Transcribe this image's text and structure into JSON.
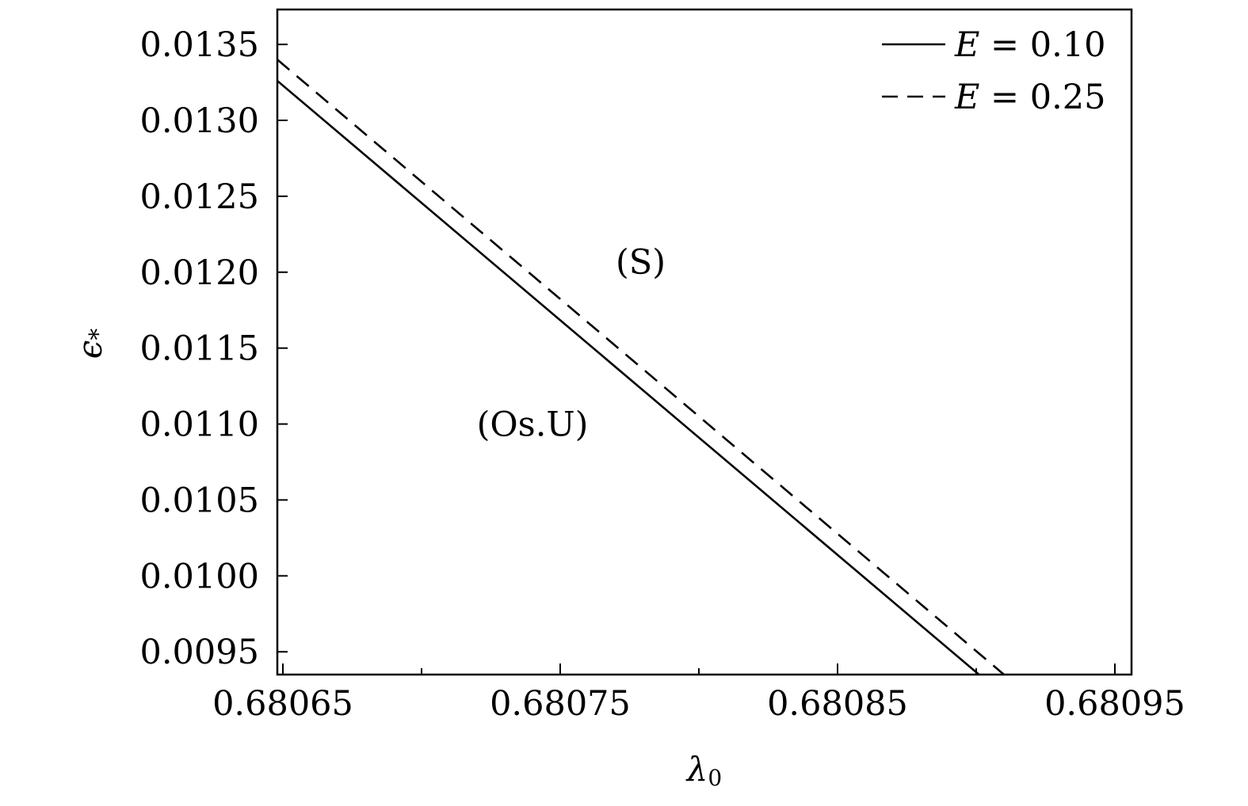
{
  "chart_data": {
    "type": "line",
    "xlabel": "λ",
    "xlabel_sub": "0",
    "ylabel": "ϵ",
    "ylabel_sub": "*",
    "xlim": [
      0.680648,
      0.680956
    ],
    "ylim": [
      0.00935,
      0.01373
    ],
    "xticks": [
      {
        "value": 0.68065,
        "label": "0.68065"
      },
      {
        "value": 0.68075,
        "label": "0.68075"
      },
      {
        "value": 0.68085,
        "label": "0.68085"
      },
      {
        "value": 0.68095,
        "label": "0.68095"
      }
    ],
    "xminor": [
      0.6807,
      0.6808,
      0.6809
    ],
    "yticks": [
      {
        "value": 0.0095,
        "label": "0.0095"
      },
      {
        "value": 0.01,
        "label": "0.0100"
      },
      {
        "value": 0.0105,
        "label": "0.0105"
      },
      {
        "value": 0.011,
        "label": "0.0110"
      },
      {
        "value": 0.0115,
        "label": "0.0115"
      },
      {
        "value": 0.012,
        "label": "0.0120"
      },
      {
        "value": 0.0125,
        "label": "0.0125"
      },
      {
        "value": 0.013,
        "label": "0.0130"
      },
      {
        "value": 0.0135,
        "label": "0.0135"
      }
    ],
    "grid": false,
    "legend_position": "top-right",
    "series": [
      {
        "name": "E = 0.10",
        "legend_var": "E",
        "legend_rest": " = 0.10",
        "style": "solid",
        "color": "#000000",
        "x": [
          0.680648,
          0.680901
        ],
        "y": [
          0.01326,
          0.00935
        ]
      },
      {
        "name": "E = 0.25",
        "legend_var": "E",
        "legend_rest": " = 0.25",
        "style": "dashed",
        "color": "#000000",
        "x": [
          0.680648,
          0.68091
        ],
        "y": [
          0.0134,
          0.00935
        ]
      }
    ],
    "annotations": [
      {
        "text": "(S)",
        "x": 0.680779,
        "y": 0.01207
      },
      {
        "text": "(Os.U)",
        "x": 0.68074,
        "y": 0.011
      }
    ]
  }
}
